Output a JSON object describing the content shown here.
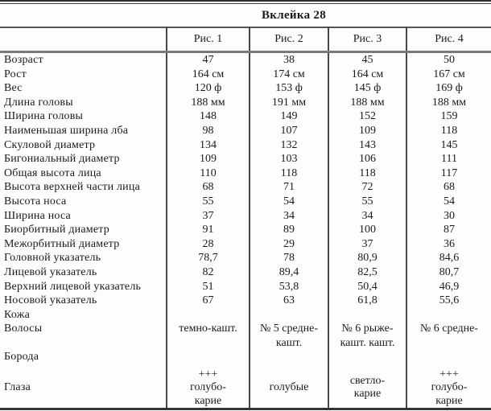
{
  "title": "Вклейка 28",
  "columns": [
    "Рис. 1",
    "Рис. 2",
    "Рис. 3",
    "Рис. 4"
  ],
  "rows": [
    {
      "label": "Возраст",
      "values": [
        "47",
        "38",
        "45",
        "50"
      ]
    },
    {
      "label": "Рост",
      "values": [
        "164 см",
        "174 см",
        "164 см",
        "167 см"
      ]
    },
    {
      "label": "Вес",
      "values": [
        "120 ф",
        "153 ф",
        "145 ф",
        "169 ф"
      ]
    },
    {
      "label": "Длина головы",
      "values": [
        "188 мм",
        "191 мм",
        "188 мм",
        "188 мм"
      ]
    },
    {
      "label": "Ширина головы",
      "values": [
        "148",
        "149",
        "152",
        "159"
      ]
    },
    {
      "label": "Наименьшая ширина лба",
      "values": [
        "98",
        "107",
        "109",
        "118"
      ]
    },
    {
      "label": "Скуловой диаметр",
      "values": [
        "134",
        "132",
        "143",
        "145"
      ]
    },
    {
      "label": "Бигониальный диаметр",
      "values": [
        "109",
        "103",
        "106",
        "111"
      ]
    },
    {
      "label": "Общая высота лица",
      "values": [
        "110",
        "118",
        "118",
        "117"
      ]
    },
    {
      "label": "Высота верхней части лица",
      "values": [
        "68",
        "71",
        "72",
        "68"
      ]
    },
    {
      "label": "Высота носа",
      "values": [
        "55",
        "54",
        "55",
        "54"
      ]
    },
    {
      "label": "Ширина носа",
      "values": [
        "37",
        "34",
        "34",
        "30"
      ]
    },
    {
      "label": "Биорбитный диаметр",
      "values": [
        "91",
        "89",
        "100",
        "87"
      ]
    },
    {
      "label": "Межорбитный диаметр",
      "values": [
        "28",
        "29",
        "37",
        "36"
      ]
    },
    {
      "label": "Головной указатель",
      "values": [
        "78,7",
        "78",
        "80,9",
        "84,6"
      ]
    },
    {
      "label": "Лицевой указатель",
      "values": [
        "82",
        "89,4",
        "82,5",
        "80,7"
      ]
    },
    {
      "label": "Верхний лицевой указатель",
      "values": [
        "51",
        "53,8",
        "50,4",
        "46,9"
      ]
    },
    {
      "label": "Носовой указатель",
      "values": [
        "67",
        "63",
        "61,8",
        "55,6"
      ]
    },
    {
      "label": "Кожа",
      "values": [
        "",
        "",
        "",
        ""
      ]
    },
    {
      "label": "Волосы",
      "values": [
        "темно-кашт.",
        "№ 5 средне-\nкашт.",
        "№ 6 рыже-\nкашт. кашт.",
        "№ 6 средне-"
      ]
    },
    {
      "label": "Борода",
      "values": [
        "",
        "",
        "",
        ""
      ]
    },
    {
      "label": "Глаза",
      "values": [
        "+++\nголубо-\nкарие",
        "голубые",
        "светло-\nкарие",
        "+++\nголубо-\nкарие"
      ]
    }
  ]
}
